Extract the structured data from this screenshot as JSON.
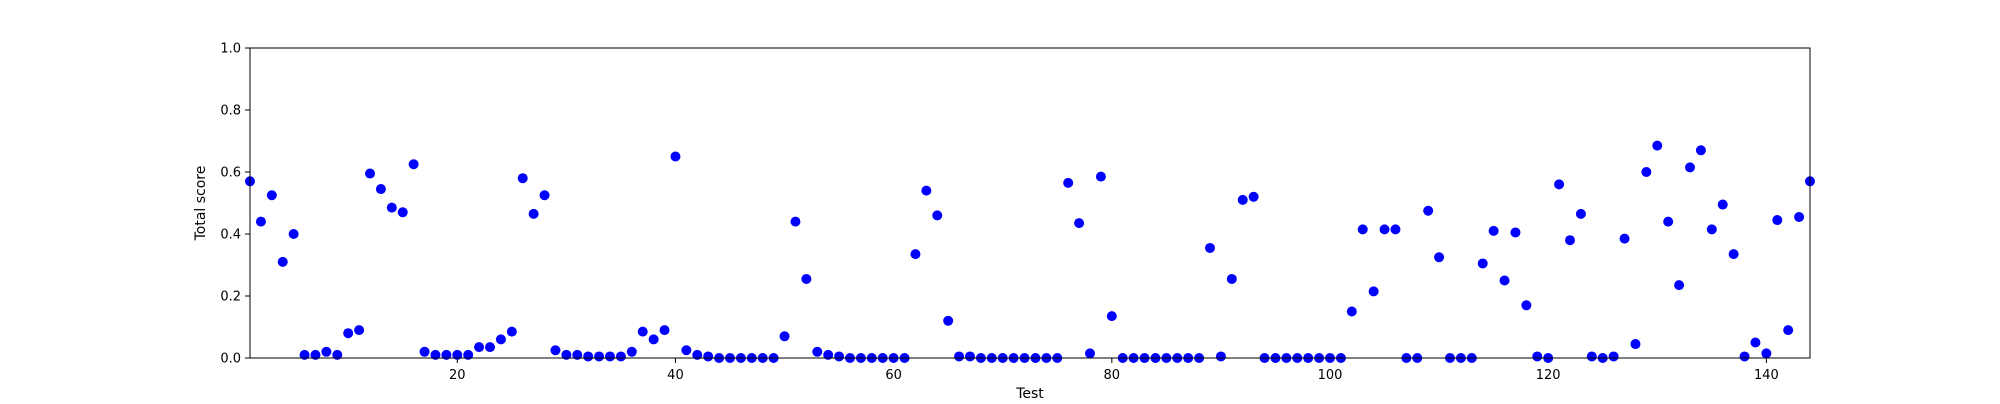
{
  "chart_data": {
    "type": "scatter",
    "title": "",
    "xlabel": "Test",
    "ylabel": "Total score",
    "xlim": [
      1,
      144
    ],
    "ylim": [
      0,
      1.0
    ],
    "x_ticks": [
      20,
      40,
      60,
      80,
      100,
      120,
      140
    ],
    "y_ticks": [
      "0.0",
      "0.2",
      "0.4",
      "0.6",
      "0.8",
      "1.0"
    ],
    "grid": false,
    "marker_color": "#0000ff",
    "series": [
      {
        "x": [
          1,
          2,
          3,
          4,
          5,
          6,
          7,
          8,
          9,
          10,
          11,
          12,
          13,
          14,
          15,
          16,
          17,
          18,
          19,
          20,
          21,
          22,
          23,
          24,
          25,
          26,
          27,
          28,
          29,
          30,
          31,
          32,
          33,
          34,
          35,
          36,
          37,
          38,
          39,
          40,
          41,
          42,
          43,
          44,
          45,
          46,
          47,
          48,
          49,
          50,
          51,
          52,
          53,
          54,
          55,
          56,
          57,
          58,
          59,
          60,
          61,
          62,
          63,
          64,
          65,
          66,
          67,
          68,
          69,
          70,
          71,
          72,
          73,
          74,
          75,
          76,
          77,
          78,
          79,
          80,
          81,
          82,
          83,
          84,
          85,
          86,
          87,
          88,
          89,
          90,
          91,
          92,
          93,
          94,
          95,
          96,
          97,
          98,
          99,
          100,
          101,
          102,
          103,
          104,
          105,
          106,
          107,
          108,
          109,
          110,
          111,
          112,
          113,
          114,
          115,
          116,
          117,
          118,
          119,
          120,
          121,
          122,
          123,
          124,
          125,
          126,
          127,
          128,
          129,
          130,
          131,
          132,
          133,
          134,
          135,
          136,
          137,
          138,
          139,
          140,
          141,
          142,
          143,
          144
        ],
        "y": [
          0.57,
          0.44,
          0.525,
          0.31,
          0.4,
          0.01,
          0.01,
          0.02,
          0.01,
          0.08,
          0.09,
          0.595,
          0.545,
          0.485,
          0.47,
          0.625,
          0.02,
          0.01,
          0.01,
          0.01,
          0.01,
          0.035,
          0.035,
          0.06,
          0.085,
          0.58,
          0.465,
          0.525,
          0.025,
          0.01,
          0.01,
          0.005,
          0.005,
          0.005,
          0.005,
          0.02,
          0.085,
          0.06,
          0.09,
          0.65,
          0.025,
          0.01,
          0.005,
          0.0,
          0.0,
          0.0,
          0.0,
          0.0,
          0.0,
          0.07,
          0.44,
          0.255,
          0.02,
          0.01,
          0.005,
          0.0,
          0.0,
          0.0,
          0.0,
          0.0,
          0.0,
          0.335,
          0.54,
          0.46,
          0.12,
          0.005,
          0.005,
          0.0,
          0.0,
          0.0,
          0.0,
          0.0,
          0.0,
          0.0,
          0.0,
          0.565,
          0.435,
          0.015,
          0.585,
          0.135,
          0.0,
          0.0,
          0.0,
          0.0,
          0.0,
          0.0,
          0.0,
          0.0,
          0.355,
          0.005,
          0.255,
          0.51,
          0.52,
          0.0,
          0.0,
          0.0,
          0.0,
          0.0,
          0.0,
          0.0,
          0.0,
          0.15,
          0.415,
          0.215,
          0.415,
          0.415,
          0.0,
          0.0,
          0.475,
          0.325,
          0.0,
          0.0,
          0.0,
          0.305,
          0.41,
          0.25,
          0.405,
          0.17,
          0.005,
          0.0,
          0.56,
          0.38,
          0.465,
          0.005,
          0.0,
          0.005,
          0.385,
          0.045,
          0.6,
          0.685,
          0.44,
          0.235,
          0.615,
          0.67,
          0.415,
          0.495,
          0.335,
          0.005,
          0.05,
          0.015,
          0.445,
          0.09,
          0.455,
          0.57
        ]
      }
    ]
  }
}
